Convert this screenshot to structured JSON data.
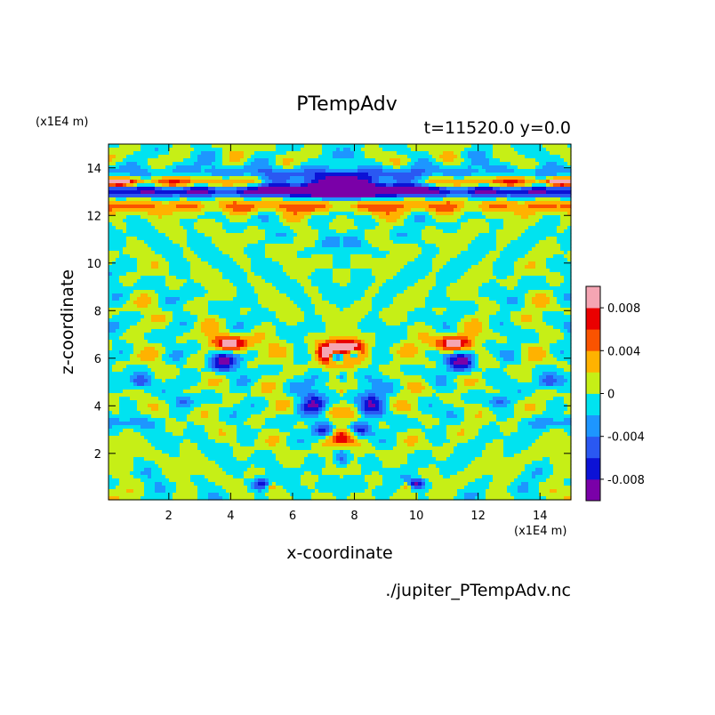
{
  "chart_data": {
    "type": "heatmap",
    "title": "PTempAdv",
    "subtitle": "t=11520.0 y=0.0",
    "xlabel": "x-coordinate",
    "ylabel": "z-coordinate",
    "x_unit": "(x1E4 m)",
    "y_unit": "(x1E4 m)",
    "source_file": "./jupiter_PTempAdv.nc",
    "xlim": [
      0.05,
      15.0
    ],
    "ylim": [
      0.05,
      15.0
    ],
    "x_ticks": [
      2,
      4,
      6,
      8,
      10,
      12,
      14
    ],
    "y_ticks": [
      2,
      4,
      6,
      8,
      10,
      12,
      14
    ],
    "x_tick_labels": [
      "2",
      "4",
      "6",
      "8",
      "10",
      "12",
      "14"
    ],
    "y_tick_labels": [
      "2",
      "4",
      "6",
      "8",
      "10",
      "12",
      "14"
    ],
    "colorbar": {
      "levels": [
        -0.01,
        -0.008,
        -0.006,
        -0.004,
        -0.002,
        0,
        0.002,
        0.004,
        0.006,
        0.008,
        0.01
      ],
      "colors": [
        "#7a00a8",
        "#0c12d6",
        "#2a58f2",
        "#1d96ff",
        "#00e3f0",
        "#c6ef16",
        "#ffb200",
        "#fa5300",
        "#ea0000",
        "#f5a5b3"
      ],
      "tick_values": [
        -0.008,
        -0.004,
        0,
        0.004,
        0.008
      ],
      "tick_labels": [
        "-0.008",
        "-0.004",
        "0",
        "0.004",
        "0.008"
      ]
    }
  }
}
